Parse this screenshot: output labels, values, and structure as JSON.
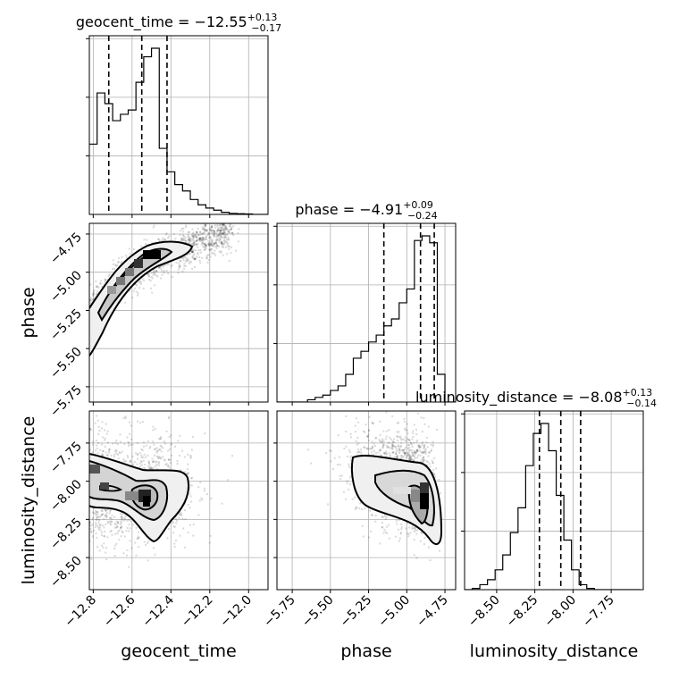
{
  "chart_data": {
    "type": "corner",
    "parameters": [
      "geocent_time",
      "phase",
      "luminosity_distance"
    ],
    "titles": [
      {
        "param": "geocent_time",
        "prefix": "geocent_time = −12.55",
        "plus": "+0.13",
        "minus": "−0.17"
      },
      {
        "param": "phase",
        "prefix": "phase = −4.91",
        "plus": "+0.09",
        "minus": "−0.24"
      },
      {
        "param": "luminosity_distance",
        "prefix": "luminosity_distance = −8.08",
        "plus": "+0.13",
        "minus": "−0.14"
      }
    ],
    "xlabels": [
      "geocent_time",
      "phase",
      "luminosity_distance"
    ],
    "ylabels": [
      "phase",
      "luminosity_distance"
    ],
    "ranges": {
      "geocent_time": [
        -12.82,
        -11.9
      ],
      "phase": [
        -5.85,
        -4.68
      ],
      "luminosity_distance": [
        -8.71,
        -7.54
      ]
    },
    "ticks": {
      "geocent_time": {
        "values": [
          -12.8,
          -12.6,
          -12.4,
          -12.2,
          -12.0
        ],
        "labels": [
          "−12.8",
          "−12.6",
          "−12.4",
          "−12.2",
          "−12.0"
        ]
      },
      "phase": {
        "values": [
          -5.75,
          -5.5,
          -5.25,
          -5.0,
          -4.75
        ],
        "labels": [
          "−5.75",
          "−5.50",
          "−5.25",
          "−5.00",
          "−4.75"
        ]
      },
      "luminosity_distance": {
        "values": [
          -8.5,
          -8.25,
          -8.0,
          -7.75
        ],
        "labels": [
          "−8.50",
          "−8.25",
          "−8.00",
          "−7.75"
        ]
      }
    },
    "quantiles": {
      "geocent_time": [
        -12.72,
        -12.55,
        -12.42
      ],
      "phase": [
        -5.15,
        -4.91,
        -4.82
      ],
      "luminosity_distance": [
        -8.22,
        -8.08,
        -7.95
      ]
    },
    "histograms": {
      "geocent_time": {
        "edges_start": -12.82,
        "bin_width": 0.04,
        "counts": [
          0.33,
          0.57,
          0.52,
          0.44,
          0.47,
          0.49,
          0.62,
          0.74,
          0.78,
          0.31,
          0.2,
          0.14,
          0.11,
          0.07,
          0.045,
          0.03,
          0.02,
          0.01,
          0.005,
          0.003,
          0.002,
          0.0,
          0.0
        ]
      },
      "phase": {
        "edges_start": -5.85,
        "bin_width": 0.05,
        "counts": [
          0.0,
          0.0,
          0.0,
          0.0,
          0.01,
          0.02,
          0.03,
          0.05,
          0.07,
          0.12,
          0.19,
          0.22,
          0.26,
          0.29,
          0.33,
          0.36,
          0.43,
          0.49,
          0.7,
          0.72,
          0.69,
          0.12,
          0.0,
          0.0
        ]
      },
      "luminosity_distance": {
        "edges_start": -8.71,
        "bin_width": 0.05,
        "counts": [
          0.0,
          0.005,
          0.02,
          0.04,
          0.08,
          0.14,
          0.23,
          0.33,
          0.5,
          0.63,
          0.67,
          0.56,
          0.38,
          0.2,
          0.08,
          0.02,
          0.005,
          0.0,
          0.0,
          0.0,
          0.0,
          0.0,
          0.0
        ]
      }
    },
    "joint_distributions": [
      {
        "x": "geocent_time",
        "y": "phase",
        "shape": "curved ridge",
        "peak": [
          -12.47,
          -4.82
        ]
      },
      {
        "x": "geocent_time",
        "y": "luminosity_distance",
        "shape": "two lobes",
        "peak": [
          -12.5,
          -8.06
        ]
      },
      {
        "x": "phase",
        "y": "luminosity_distance",
        "shape": "skewed blob",
        "peak": [
          -4.84,
          -8.1
        ]
      }
    ],
    "grid": true
  }
}
